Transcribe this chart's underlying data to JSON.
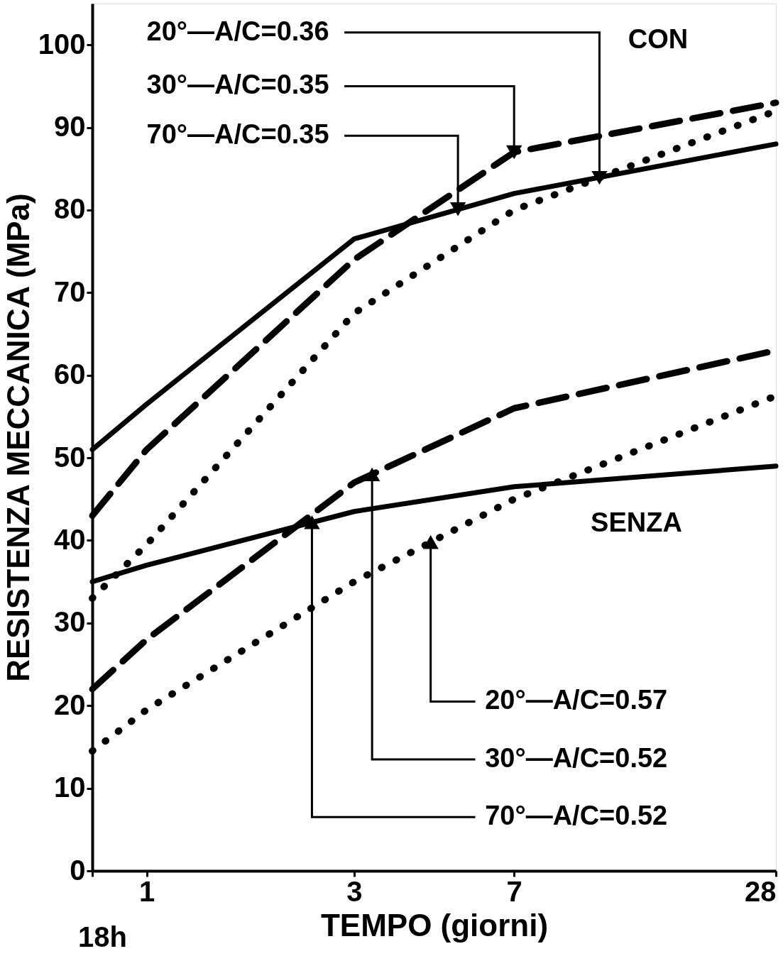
{
  "chart_data": {
    "type": "line",
    "xlabel": "TEMPO (giorni)",
    "ylabel": "RESISTENZA  MECCANICA (MPa)",
    "x": [
      0.75,
      1,
      3,
      7,
      28
    ],
    "xlim": [
      0.75,
      28
    ],
    "xticks": [
      {
        "value": 0.75,
        "label": null
      },
      1,
      3,
      7,
      28
    ],
    "ylim": [
      0,
      105
    ],
    "yticks": [
      0,
      10,
      20,
      30,
      40,
      50,
      60,
      70,
      80,
      90,
      100
    ],
    "log": "x",
    "grid": false,
    "marker": "none",
    "series": [
      {
        "color": "#000000",
        "line_style": "solid",
        "values": [
          51,
          56.5,
          76.5,
          82,
          88
        ]
      },
      {
        "color": "#000000",
        "line_style": "dashed",
        "values": [
          43,
          51,
          74,
          87,
          93
        ]
      },
      {
        "color": "#000000",
        "line_style": "dotted",
        "values": [
          33,
          39.5,
          67.5,
          80,
          92
        ]
      },
      {
        "color": "#000000",
        "line_style": "solid",
        "values": [
          35,
          37,
          43.5,
          46.5,
          49
        ]
      },
      {
        "color": "#000000",
        "line_style": "dashed",
        "values": [
          22,
          28,
          47,
          56,
          63
        ]
      },
      {
        "color": "#000000",
        "line_style": "dotted",
        "values": [
          14.5,
          19.5,
          35,
          45,
          57.5
        ]
      }
    ],
    "annotations": [
      {
        "text": "20°—A/C=0.36",
        "x": 11,
        "y": 83.9
      },
      {
        "text": "30°—A/C=0.35",
        "x": 7,
        "y": 87
      },
      {
        "text": "70°—A/C=0.35",
        "x": 5.2,
        "y": 80.1
      },
      "CON",
      {
        "text": "20°—A/C=0.57",
        "x": 4.5,
        "y": 39.8
      },
      {
        "text": "30°—A/C=0.52",
        "x": 3.3,
        "y": 48
      },
      {
        "text": "70°—A/C=0.52",
        "x": 2.4,
        "y": 42.2
      },
      "SENZA",
      "18h"
    ]
  }
}
